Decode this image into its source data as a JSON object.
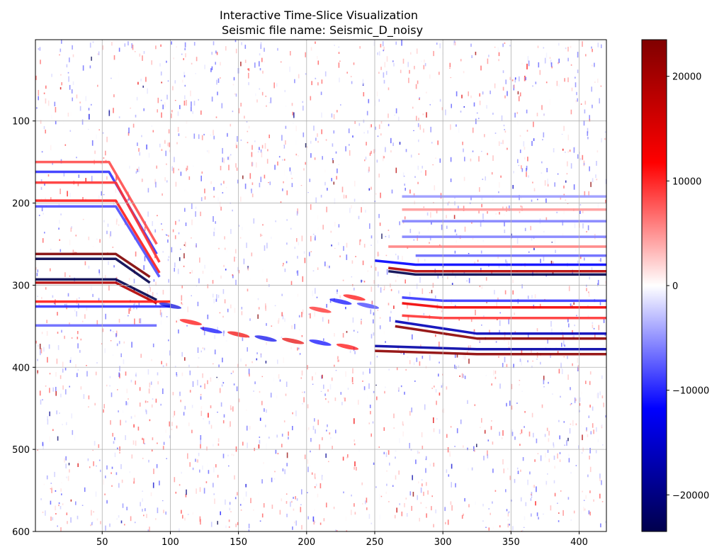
{
  "chart_data": {
    "type": "heatmap",
    "title": "Interactive Time-Slice Visualization",
    "subtitle": "Seismic file name: Seismic_D_noisy",
    "xlim": [
      1,
      420
    ],
    "ylim": [
      600,
      1
    ],
    "y_inverted": true,
    "xticks": [
      50,
      100,
      150,
      200,
      250,
      300,
      350,
      400
    ],
    "yticks": [
      100,
      200,
      300,
      400,
      500,
      600
    ],
    "grid": true,
    "colormap": "seismic",
    "colorbar": {
      "vmin": -23500,
      "vmax": 23500,
      "ticks": [
        -20000,
        -10000,
        0,
        10000,
        20000
      ],
      "tick_labels": [
        "−20000",
        "−10000",
        "0",
        "10000",
        "20000"
      ]
    },
    "reflectors": [
      {
        "y0": 262,
        "y1": 262,
        "amp": 1.0,
        "x0": 1,
        "x1": 60,
        "hinge": 60,
        "dip_end_x": 85,
        "dip_end_y": 290
      },
      {
        "y0": 268,
        "y1": 268,
        "amp": -1.0,
        "x0": 1,
        "x1": 60,
        "hinge": 60,
        "dip_end_x": 85,
        "dip_end_y": 297
      },
      {
        "y0": 293,
        "y1": 293,
        "amp": -1.0,
        "x0": 1,
        "x1": 60,
        "hinge": 60,
        "dip_end_x": 90,
        "dip_end_y": 318
      },
      {
        "y0": 297,
        "y1": 297,
        "amp": 0.8,
        "x0": 1,
        "x1": 60,
        "hinge": 60,
        "dip_end_x": 90,
        "dip_end_y": 322
      },
      {
        "y0": 150,
        "y1": 150,
        "amp": 0.35,
        "x0": 1,
        "x1": 55,
        "hinge": 55,
        "dip_end_x": 90,
        "dip_end_y": 250
      },
      {
        "y0": 162,
        "y1": 162,
        "amp": -0.4,
        "x0": 1,
        "x1": 55,
        "hinge": 55,
        "dip_end_x": 90,
        "dip_end_y": 262
      },
      {
        "y0": 175,
        "y1": 175,
        "amp": 0.4,
        "x0": 1,
        "x1": 60,
        "hinge": 60,
        "dip_end_x": 92,
        "dip_end_y": 272
      },
      {
        "y0": 197,
        "y1": 197,
        "amp": 0.45,
        "x0": 1,
        "x1": 60,
        "hinge": 60,
        "dip_end_x": 92,
        "dip_end_y": 285
      },
      {
        "y0": 204,
        "y1": 204,
        "amp": -0.35,
        "x0": 1,
        "x1": 60,
        "hinge": 60,
        "dip_end_x": 92,
        "dip_end_y": 290
      },
      {
        "y0": 320,
        "y1": 320,
        "amp": 0.45,
        "x0": 1,
        "x1": 100,
        "hinge": 100,
        "dip_end_x": 100,
        "dip_end_y": 320
      },
      {
        "y0": 326,
        "y1": 326,
        "amp": -0.4,
        "x0": 1,
        "x1": 100,
        "hinge": 100,
        "dip_end_x": 100,
        "dip_end_y": 326
      },
      {
        "y0": 349,
        "y1": 349,
        "amp": -0.3,
        "x0": 1,
        "x1": 90,
        "hinge": 90,
        "dip_end_x": 90,
        "dip_end_y": 349
      },
      {
        "y0": 287,
        "y1": 287,
        "amp": -1.0,
        "x0": 280,
        "x1": 420,
        "hinge": 280,
        "dip_end_x": 260,
        "dip_end_y": 283
      },
      {
        "y0": 283,
        "y1": 283,
        "amp": 0.8,
        "x0": 280,
        "x1": 420,
        "hinge": 280,
        "dip_end_x": 260,
        "dip_end_y": 279
      },
      {
        "y0": 275,
        "y1": 275,
        "amp": -0.5,
        "x0": 280,
        "x1": 420,
        "hinge": 280,
        "dip_end_x": 250,
        "dip_end_y": 270
      },
      {
        "y0": 365,
        "y1": 365,
        "amp": 0.95,
        "x0": 325,
        "x1": 420,
        "hinge": 325,
        "dip_end_x": 265,
        "dip_end_y": 350
      },
      {
        "y0": 359,
        "y1": 359,
        "amp": -0.7,
        "x0": 325,
        "x1": 420,
        "hinge": 325,
        "dip_end_x": 265,
        "dip_end_y": 344
      },
      {
        "y0": 384,
        "y1": 384,
        "amp": 0.95,
        "x0": 325,
        "x1": 420,
        "hinge": 325,
        "dip_end_x": 250,
        "dip_end_y": 380
      },
      {
        "y0": 378,
        "y1": 378,
        "amp": -0.75,
        "x0": 325,
        "x1": 420,
        "hinge": 325,
        "dip_end_x": 250,
        "dip_end_y": 374
      },
      {
        "y0": 327,
        "y1": 327,
        "amp": 0.55,
        "x0": 300,
        "x1": 420,
        "hinge": 300,
        "dip_end_x": 270,
        "dip_end_y": 322
      },
      {
        "y0": 319,
        "y1": 319,
        "amp": -0.4,
        "x0": 300,
        "x1": 420,
        "hinge": 300,
        "dip_end_x": 270,
        "dip_end_y": 315
      },
      {
        "y0": 340,
        "y1": 340,
        "amp": 0.4,
        "x0": 300,
        "x1": 420,
        "hinge": 300,
        "dip_end_x": 270,
        "dip_end_y": 337
      },
      {
        "y0": 222,
        "y1": 222,
        "amp": -0.25,
        "x0": 270,
        "x1": 420,
        "hinge": 270,
        "dip_end_x": 270,
        "dip_end_y": 222
      },
      {
        "y0": 241,
        "y1": 241,
        "amp": -0.25,
        "x0": 270,
        "x1": 420,
        "hinge": 270,
        "dip_end_x": 270,
        "dip_end_y": 241
      },
      {
        "y0": 253,
        "y1": 253,
        "amp": 0.25,
        "x0": 260,
        "x1": 420,
        "hinge": 260,
        "dip_end_x": 260,
        "dip_end_y": 253
      },
      {
        "y0": 264,
        "y1": 264,
        "amp": -0.3,
        "x0": 280,
        "x1": 420,
        "hinge": 280,
        "dip_end_x": 280,
        "dip_end_y": 264
      },
      {
        "y0": 192,
        "y1": 192,
        "amp": -0.2,
        "x0": 270,
        "x1": 420,
        "hinge": 270,
        "dip_end_x": 270,
        "dip_end_y": 192
      },
      {
        "y0": 208,
        "y1": 208,
        "amp": 0.2,
        "x0": 270,
        "x1": 420,
        "hinge": 270,
        "dip_end_x": 270,
        "dip_end_y": 208
      }
    ],
    "fault_zone": [
      {
        "x": 100,
        "y": 325,
        "amp": -0.6
      },
      {
        "x": 115,
        "y": 345,
        "amp": 0.5
      },
      {
        "x": 130,
        "y": 355,
        "amp": -0.5
      },
      {
        "x": 150,
        "y": 360,
        "amp": 0.55
      },
      {
        "x": 170,
        "y": 365,
        "amp": -0.55
      },
      {
        "x": 190,
        "y": 368,
        "amp": 0.6
      },
      {
        "x": 210,
        "y": 370,
        "amp": -0.5
      },
      {
        "x": 230,
        "y": 375,
        "amp": 0.5
      },
      {
        "x": 210,
        "y": 330,
        "amp": 0.45
      },
      {
        "x": 225,
        "y": 320,
        "amp": -0.5
      },
      {
        "x": 235,
        "y": 315,
        "amp": 0.5
      },
      {
        "x": 245,
        "y": 325,
        "amp": -0.4
      }
    ]
  }
}
